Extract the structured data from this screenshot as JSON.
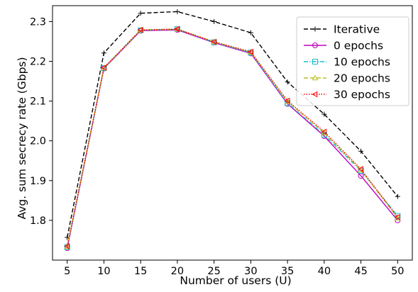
{
  "chart_data": {
    "type": "line",
    "title": "",
    "xlabel": "Number of users (U)",
    "ylabel": "Avg. sum secrecy rate (Gbps)",
    "x": [
      5,
      10,
      15,
      20,
      25,
      30,
      35,
      40,
      45,
      50
    ],
    "xlim": [
      3,
      52
    ],
    "ylim": [
      1.7,
      2.34
    ],
    "xticks": [
      "5",
      "10",
      "15",
      "20",
      "25",
      "30",
      "35",
      "40",
      "45",
      "50"
    ],
    "yticks": [
      "1.8",
      "1.9",
      "2.0",
      "2.1",
      "2.2",
      "2.3"
    ],
    "grid": false,
    "legend_position": "top-right",
    "series": [
      {
        "name": "Iterative",
        "color": "#000000",
        "dash": "dashed",
        "marker": "plus",
        "values": [
          1.757,
          2.221,
          2.321,
          2.325,
          2.3,
          2.272,
          2.148,
          2.067,
          1.974,
          1.86
        ]
      },
      {
        "name": "0 epochs",
        "color": "#bf00bf",
        "dash": "solid",
        "marker": "circle",
        "values": [
          1.73,
          2.182,
          2.277,
          2.279,
          2.247,
          2.22,
          2.093,
          2.012,
          1.912,
          1.8
        ]
      },
      {
        "name": "10 epochs",
        "color": "#17becf",
        "dash": "dashdot",
        "marker": "square",
        "values": [
          1.733,
          2.183,
          2.278,
          2.281,
          2.248,
          2.222,
          2.095,
          2.015,
          1.925,
          1.811
        ]
      },
      {
        "name": "20 epochs",
        "color": "#bcbd22",
        "dash": "dashed",
        "marker": "triangle-up",
        "values": [
          1.734,
          2.184,
          2.279,
          2.281,
          2.249,
          2.223,
          2.099,
          2.02,
          1.927,
          1.806
        ]
      },
      {
        "name": "30 epochs",
        "color": "#ff0000",
        "dash": "dotted",
        "marker": "triangle-left",
        "values": [
          1.735,
          2.184,
          2.279,
          2.281,
          2.249,
          2.224,
          2.101,
          2.023,
          1.929,
          1.808
        ]
      }
    ]
  }
}
